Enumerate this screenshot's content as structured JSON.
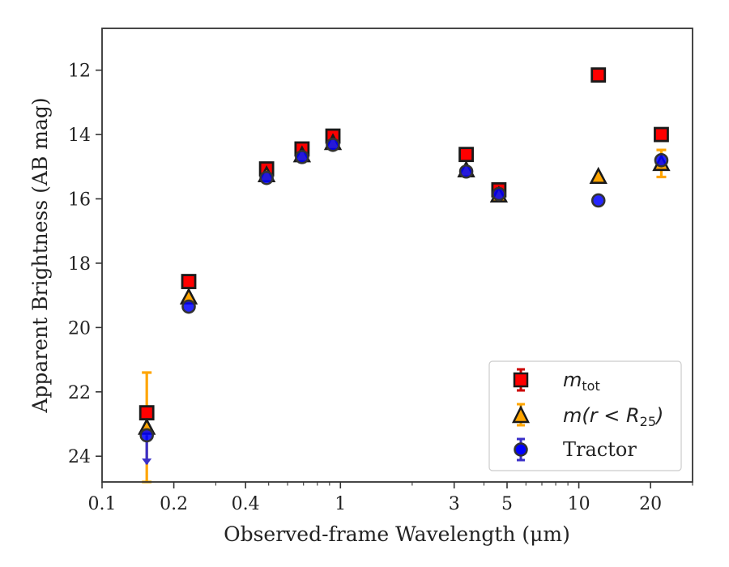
{
  "chart_data": {
    "type": "scatter",
    "title": "",
    "xlabel": "Observed-frame Wavelength (μm)",
    "ylabel": "Apparent Brightness (AB mag)",
    "xscale": "log",
    "xlim": [
      0.1,
      30
    ],
    "ylim": [
      24.8,
      10.7
    ],
    "y_inverted": true,
    "grid": false,
    "legend_position": "lower-right",
    "xticks": [
      {
        "value": 0.1,
        "label": "0.1"
      },
      {
        "value": 0.2,
        "label": "0.2"
      },
      {
        "value": 0.4,
        "label": "0.4"
      },
      {
        "value": 1,
        "label": "1"
      },
      {
        "value": 3,
        "label": "3"
      },
      {
        "value": 5,
        "label": "5"
      },
      {
        "value": 10,
        "label": "10"
      },
      {
        "value": 20,
        "label": "20"
      }
    ],
    "yticks": [
      {
        "value": 12,
        "label": "12"
      },
      {
        "value": 14,
        "label": "14"
      },
      {
        "value": 16,
        "label": "16"
      },
      {
        "value": 18,
        "label": "18"
      },
      {
        "value": 20,
        "label": "20"
      },
      {
        "value": 22,
        "label": "22"
      },
      {
        "value": 24,
        "label": "24"
      }
    ],
    "series": [
      {
        "name": "m_tot",
        "marker": "square",
        "color": "#ff0000",
        "edge_color": "#1a1a1a",
        "error_color": "#cc0000",
        "points": [
          {
            "x": 0.154,
            "y": 22.65
          },
          {
            "x": 0.231,
            "y": 18.57
          },
          {
            "x": 0.49,
            "y": 15.07
          },
          {
            "x": 0.69,
            "y": 14.45
          },
          {
            "x": 0.93,
            "y": 14.05
          },
          {
            "x": 3.37,
            "y": 14.62
          },
          {
            "x": 4.62,
            "y": 15.72
          },
          {
            "x": 12.08,
            "y": 12.15
          },
          {
            "x": 22.19,
            "y": 14.0
          }
        ]
      },
      {
        "name": "m(r < R25)",
        "marker": "triangle",
        "color": "#ffa500",
        "edge_color": "#1a1a1a",
        "error_color": "#ffa500",
        "points": [
          {
            "x": 0.154,
            "y": 23.1,
            "err": 1.7
          },
          {
            "x": 0.231,
            "y": 19.05
          },
          {
            "x": 0.49,
            "y": 15.25
          },
          {
            "x": 0.69,
            "y": 14.63
          },
          {
            "x": 0.93,
            "y": 14.25
          },
          {
            "x": 3.37,
            "y": 15.1
          },
          {
            "x": 4.62,
            "y": 15.88
          },
          {
            "x": 12.08,
            "y": 15.3
          },
          {
            "x": 22.19,
            "y": 14.9,
            "err": 0.42
          }
        ]
      },
      {
        "name": "Tractor",
        "marker": "circle",
        "color": "#0000ff",
        "edge_color": "#333333",
        "error_color": "#3a2fc8",
        "points": [
          {
            "x": 0.154,
            "y": 23.35,
            "upper_limit": true
          },
          {
            "x": 0.231,
            "y": 19.35
          },
          {
            "x": 0.49,
            "y": 15.35
          },
          {
            "x": 0.69,
            "y": 14.7
          },
          {
            "x": 0.93,
            "y": 14.32
          },
          {
            "x": 3.37,
            "y": 15.15
          },
          {
            "x": 4.62,
            "y": 15.85
          },
          {
            "x": 12.08,
            "y": 16.05
          },
          {
            "x": 22.19,
            "y": 14.8
          }
        ]
      }
    ]
  },
  "legend": {
    "item1_base": "m",
    "item1_sub": "tot",
    "item2_text": "m(r < R",
    "item2_sub": "25",
    "item2_close": ")",
    "item3_text": "Tractor"
  }
}
